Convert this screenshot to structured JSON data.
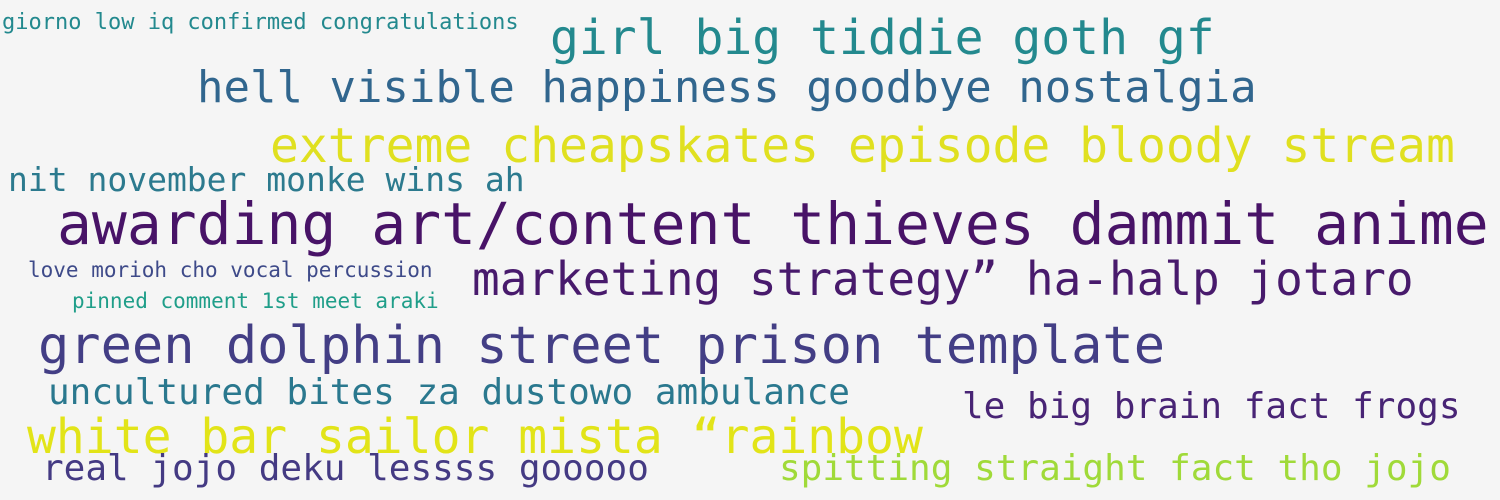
{
  "background": "#f5f5f5",
  "phrases": [
    {
      "text": "giorno low iq confirmed congratulations",
      "color": "#23898e"
    },
    {
      "text": "girl big tiddie goth gf",
      "color": "#23898e"
    },
    {
      "text": "hell visible happiness goodbye nostalgia",
      "color": "#31668e"
    },
    {
      "text": "extreme cheapskates episode bloody stream",
      "color": "#e0e020"
    },
    {
      "text": "nit november monke wins ah",
      "color": "#2c7a8e"
    },
    {
      "text": "awarding art/content thieves dammit anime",
      "color": "#481367"
    },
    {
      "text": "love morioh cho vocal percussion",
      "color": "#3e4a89"
    },
    {
      "text": "marketing strategy” ha-halp jotaro",
      "color": "#481a6c"
    },
    {
      "text": "pinned comment 1st meet araki",
      "color": "#1f9e89"
    },
    {
      "text": "green dolphin street prison template",
      "color": "#433e85"
    },
    {
      "text": "uncultured bites za dustowo ambulance",
      "color": "#2a788e"
    },
    {
      "text": "le big brain fact frogs",
      "color": "#482475"
    },
    {
      "text": "white bar sailor mista “rainbow",
      "color": "#e2e418"
    },
    {
      "text": "real jojo deku lessss gooooo",
      "color": "#443a83"
    },
    {
      "text": "spitting straight fact tho jojo",
      "color": "#a0da39"
    }
  ]
}
